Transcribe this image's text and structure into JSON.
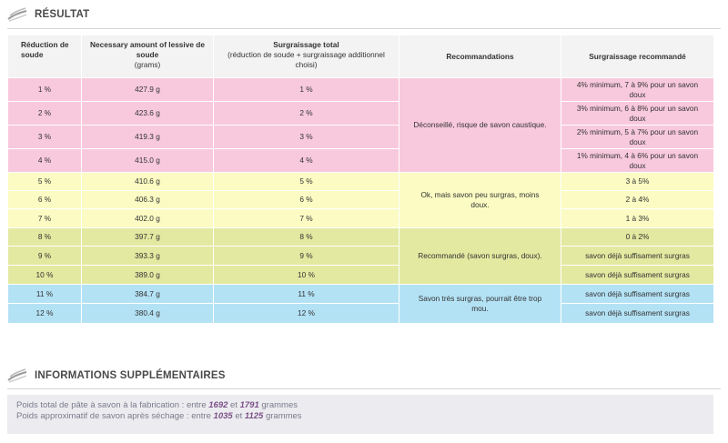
{
  "result": {
    "title": "RÉSULTAT",
    "headers": {
      "col1": "Réduction de soude",
      "col2_line": "Necessary amount of lessive de soude",
      "col2_sub": "(grams)",
      "col3": "Surgraissage total",
      "col3_sub": "(réduction de soude + surgraissage additionnel choisi)",
      "col4": "Recommandations",
      "col5": "Surgraissage recommandé"
    },
    "groups": [
      {
        "recommendation": "Déconseillé, risque de savon caustique.",
        "rows": [
          {
            "reduction": "1 %",
            "amount": "427.9 g",
            "total": "1 %",
            "recommended": "4% minimum, 7 à 9% pour un savon doux"
          },
          {
            "reduction": "2 %",
            "amount": "423.6 g",
            "total": "2 %",
            "recommended": "3% minimum, 6 à 8% pour un savon doux"
          },
          {
            "reduction": "3 %",
            "amount": "419.3 g",
            "total": "3 %",
            "recommended": "2% minimum, 5 à 7% pour un savon doux"
          },
          {
            "reduction": "4 %",
            "amount": "415.0 g",
            "total": "4 %",
            "recommended": "1% minimum, 4 à 6% pour un savon doux"
          }
        ]
      },
      {
        "recommendation": "Ok, mais savon peu surgras, moins doux.",
        "rows": [
          {
            "reduction": "5 %",
            "amount": "410.6 g",
            "total": "5 %",
            "recommended": "3 à 5%"
          },
          {
            "reduction": "6 %",
            "amount": "406.3 g",
            "total": "6 %",
            "recommended": "2 à 4%"
          },
          {
            "reduction": "7 %",
            "amount": "402.0 g",
            "total": "7 %",
            "recommended": "1 à 3%"
          }
        ]
      },
      {
        "recommendation": "Recommandé (savon surgras, doux).",
        "rows": [
          {
            "reduction": "8 %",
            "amount": "397.7 g",
            "total": "8 %",
            "recommended": "0 à 2%"
          },
          {
            "reduction": "9 %",
            "amount": "393.3 g",
            "total": "9 %",
            "recommended": "savon déjà suffisament surgras"
          },
          {
            "reduction": "10 %",
            "amount": "389.0 g",
            "total": "10 %",
            "recommended": "savon déjà suffisament surgras"
          }
        ]
      },
      {
        "recommendation": "Savon très surgras, pourrait être trop mou.",
        "rows": [
          {
            "reduction": "11 %",
            "amount": "384.7 g",
            "total": "11 %",
            "recommended": "savon déjà suffisament surgras"
          },
          {
            "reduction": "12 %",
            "amount": "380.4 g",
            "total": "12 %",
            "recommended": "savon déjà suffisament surgras"
          }
        ]
      }
    ]
  },
  "info": {
    "title": "INFORMATIONS SUPPLÉMENTAIRES",
    "line1_prefix": "Poids total de pâte à savon à la fabrication : entre",
    "line1_min": "1692",
    "line1_mid": "et",
    "line1_max": "1791",
    "line1_suffix": "grammes",
    "line2_prefix": "Poids approximatif de savon après séchage : entre",
    "line2_min": "1035",
    "line2_mid": "et",
    "line2_max": "1125",
    "line2_suffix": "grammes"
  },
  "colors": {
    "pink": "#f8c9dc",
    "yellow": "#fbfbc3",
    "olive": "#e3e9a0",
    "blue": "#b4e2f5",
    "highlight": "#7b4f87"
  }
}
